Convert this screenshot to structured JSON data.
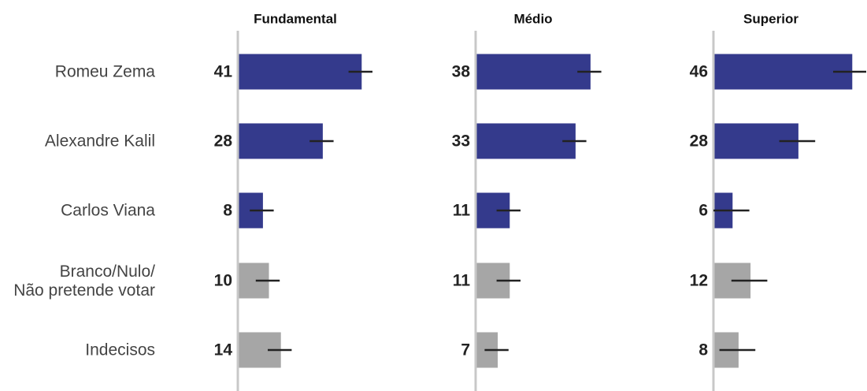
{
  "chart_data": {
    "type": "bar",
    "orientation": "horizontal",
    "grid": false,
    "categories": [
      "Romeu Zema",
      "Alexandre Kalil",
      "Carlos Viana",
      [
        "Branco/Nulo/",
        "Não pretende votar"
      ],
      "Indecisos"
    ],
    "category_colors": [
      "#343a8c",
      "#343a8c",
      "#343a8c",
      "#a6a6a6",
      "#a6a6a6"
    ],
    "error_bar_color": "#222222",
    "axis_line_color": "#c8c8c8",
    "panels": [
      {
        "title": "Fundamental",
        "values": [
          41,
          28,
          8,
          10,
          14
        ],
        "error_margin": 4
      },
      {
        "title": "Médio",
        "values": [
          38,
          33,
          11,
          11,
          7
        ],
        "error_margin": 4
      },
      {
        "title": "Superior",
        "values": [
          46,
          28,
          6,
          12,
          8
        ],
        "error_margin": 6
      }
    ]
  }
}
